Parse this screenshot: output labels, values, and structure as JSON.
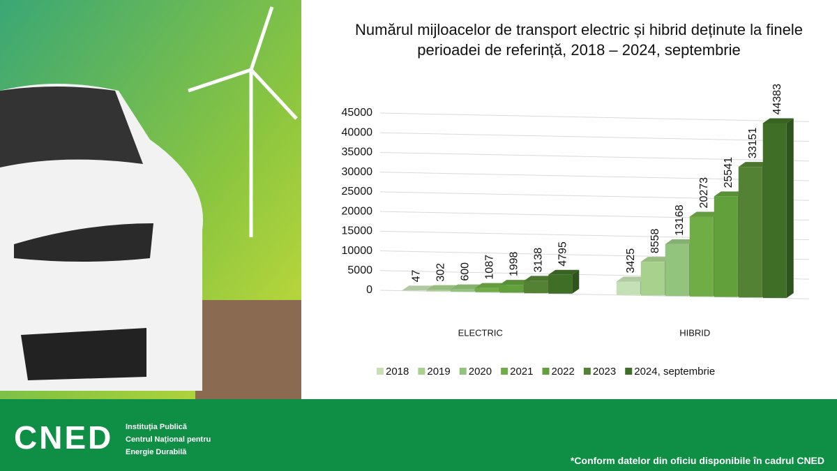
{
  "chart_data": {
    "type": "bar3d",
    "title": "Numărul mijloacelor de transport electric și hibrid deținute la finele perioadei de referință, 2018 – 2024, septembrie",
    "categories": [
      "ELECTRIC",
      "HIBRID"
    ],
    "series": [
      {
        "name": "2018",
        "color": "#c5e0b4",
        "values": [
          47,
          3425
        ]
      },
      {
        "name": "2019",
        "color": "#a9d18e",
        "values": [
          302,
          8558
        ]
      },
      {
        "name": "2020",
        "color": "#93c47d",
        "values": [
          600,
          13168
        ]
      },
      {
        "name": "2021",
        "color": "#70ad47",
        "values": [
          1087,
          20273
        ]
      },
      {
        "name": "2022",
        "color": "#62a03c",
        "values": [
          1998,
          25541
        ]
      },
      {
        "name": "2023",
        "color": "#548235",
        "values": [
          3138,
          33151
        ]
      },
      {
        "name": "2024, septembrie",
        "color": "#3f6e27",
        "values": [
          4795,
          44383
        ]
      }
    ],
    "ylim": [
      0,
      45000
    ],
    "yticks": [
      0,
      5000,
      10000,
      15000,
      20000,
      25000,
      30000,
      35000,
      40000,
      45000
    ],
    "grid": true,
    "legend": "bottom"
  },
  "footer": {
    "logo": "CNED",
    "org_lines": [
      "Instituția Publică",
      "Centrul Național pentru",
      "Energie Durabilă"
    ],
    "note": "*Conform datelor din oficiu disponibile în cadrul CNED"
  }
}
